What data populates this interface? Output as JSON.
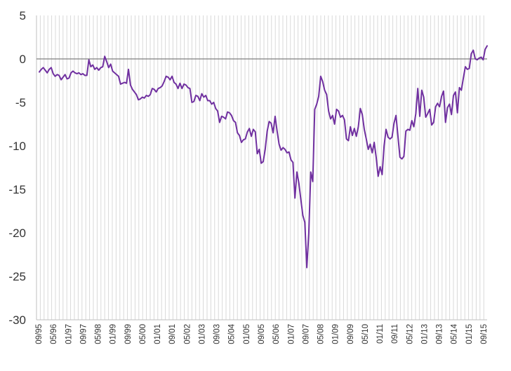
{
  "chart_data": {
    "type": "line",
    "title": "",
    "xlabel": "",
    "ylabel": "",
    "ylim": [
      -30,
      5
    ],
    "yticks": [
      5,
      0,
      -5,
      -10,
      -15,
      -20,
      -25,
      -30
    ],
    "ytick_labels": [
      "5",
      "0",
      "-5",
      "-10",
      "-15",
      "-20",
      "-25",
      "-30"
    ],
    "xtick_labels": [
      "09/95",
      "05/96",
      "01/97",
      "09/97",
      "05/98",
      "01/99",
      "09/99",
      "05/00",
      "01/01",
      "09/01",
      "05/02",
      "01/03",
      "09/03",
      "05/04",
      "01/05",
      "09/05",
      "05/06",
      "01/07",
      "09/07",
      "05/08",
      "01/09",
      "09/09",
      "05/10",
      "01/11",
      "09/11",
      "05/12",
      "01/13",
      "09/13",
      "05/14",
      "01/15",
      "09/15"
    ],
    "grid": {
      "vertical": true,
      "horizontal": false
    },
    "zero_line": true,
    "colors": {
      "series": "#7030a0",
      "grid": "#d9d9d9",
      "zero_line": "#7f7f7f",
      "axis": "#bfbfbf"
    },
    "series": [
      {
        "values": [
          -1.5,
          -1.2,
          -1.0,
          -1.3,
          -1.6,
          -1.2,
          -1.0,
          -1.7,
          -2.0,
          -1.8,
          -1.9,
          -2.4,
          -2.1,
          -1.8,
          -2.3,
          -2.2,
          -1.6,
          -1.4,
          -1.6,
          -1.7,
          -1.6,
          -1.8,
          -1.7,
          -1.9,
          -1.9,
          -0.1,
          -0.9,
          -0.7,
          -1.2,
          -1.0,
          -1.3,
          -1.0,
          -0.9,
          0.3,
          -0.3,
          -1.0,
          -0.6,
          -1.4,
          -1.6,
          -1.8,
          -2.0,
          -2.9,
          -2.8,
          -2.7,
          -2.8,
          -1.2,
          -3.0,
          -3.5,
          -3.8,
          -4.1,
          -4.7,
          -4.6,
          -4.4,
          -4.5,
          -4.2,
          -4.3,
          -4.1,
          -3.4,
          -3.5,
          -3.8,
          -3.4,
          -3.3,
          -3.1,
          -2.6,
          -2.0,
          -2.1,
          -2.4,
          -2.0,
          -2.7,
          -2.9,
          -3.4,
          -2.8,
          -3.4,
          -2.9,
          -3.0,
          -3.3,
          -3.4,
          -5.0,
          -4.9,
          -4.2,
          -4.3,
          -4.8,
          -4.0,
          -4.4,
          -4.2,
          -4.8,
          -4.8,
          -5.2,
          -5.0,
          -5.7,
          -6.0,
          -7.3,
          -6.6,
          -6.7,
          -6.9,
          -6.1,
          -6.2,
          -6.5,
          -7.1,
          -7.3,
          -8.5,
          -8.8,
          -9.6,
          -9.3,
          -9.2,
          -8.4,
          -8.0,
          -8.9,
          -8.1,
          -8.4,
          -10.9,
          -10.4,
          -12.0,
          -11.8,
          -10.4,
          -8.3,
          -7.2,
          -7.4,
          -8.5,
          -6.6,
          -8.3,
          -9.8,
          -10.5,
          -10.2,
          -10.4,
          -10.8,
          -10.7,
          -11.6,
          -11.9,
          -16.0,
          -13.0,
          -14.3,
          -16.2,
          -18.0,
          -18.8,
          -24.0,
          -20.0,
          -13.0,
          -14.1,
          -5.8,
          -5.2,
          -4.3,
          -2.0,
          -2.6,
          -3.6,
          -4.1,
          -6.0,
          -6.9,
          -6.5,
          -7.5,
          -5.8,
          -6.0,
          -6.7,
          -6.5,
          -7.0,
          -9.2,
          -9.4,
          -7.8,
          -8.8,
          -8.0,
          -8.9,
          -7.8,
          -5.7,
          -6.4,
          -8.1,
          -9.2,
          -10.4,
          -9.8,
          -10.8,
          -9.6,
          -11.3,
          -13.5,
          -12.4,
          -13.3,
          -10.0,
          -8.1,
          -9.0,
          -9.2,
          -9.0,
          -7.4,
          -6.5,
          -8.9,
          -11.3,
          -11.5,
          -11.2,
          -8.3,
          -8.1,
          -8.2,
          -7.1,
          -7.8,
          -6.3,
          -3.4,
          -6.6,
          -3.6,
          -4.4,
          -6.7,
          -6.3,
          -5.8,
          -7.6,
          -7.3,
          -5.5,
          -5.1,
          -5.5,
          -4.3,
          -3.7,
          -7.3,
          -5.6,
          -5.2,
          -6.4,
          -4.2,
          -3.8,
          -6.2,
          -3.3,
          -3.6,
          -2.2,
          -0.9,
          -1.2,
          -1.1,
          0.6,
          1.0,
          0.0,
          -0.1,
          0.1,
          0.2,
          -0.1,
          1.1,
          1.5
        ]
      }
    ]
  }
}
